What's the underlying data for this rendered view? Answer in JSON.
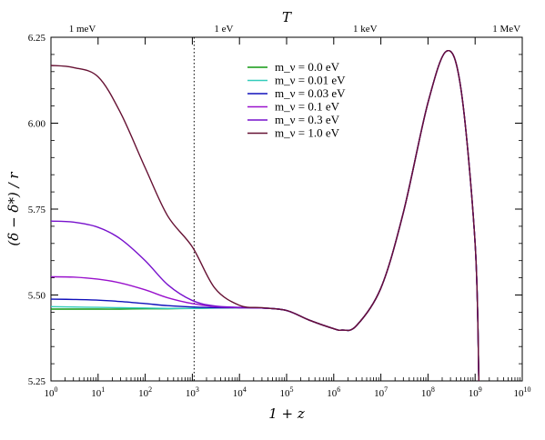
{
  "chart_data": {
    "type": "line",
    "xlabel": "1 + z",
    "ylabel": "(δ − δ*) / r",
    "top_xlabel": "T",
    "x_scale": "log",
    "xlim": [
      1,
      10000000000
    ],
    "ylim": [
      5.25,
      6.25
    ],
    "grid": false,
    "legend_position": "top-center",
    "x_ticks": [
      "10^0",
      "10^1",
      "10^2",
      "10^3",
      "10^4",
      "10^5",
      "10^6",
      "10^7",
      "10^8",
      "10^9",
      "10^10"
    ],
    "x_tick_values": [
      1,
      10,
      100,
      1000,
      10000,
      100000,
      1000000,
      10000000,
      100000000,
      1000000000,
      10000000000
    ],
    "y_ticks": [
      "5.25",
      "5.50",
      "5.75",
      "6.00",
      "6.25"
    ],
    "y_tick_values": [
      5.25,
      5.5,
      5.75,
      6.0,
      6.25
    ],
    "top_ticks": [
      {
        "label": "1 meV",
        "x": 4.64
      },
      {
        "label": "1 eV",
        "x": 4640
      },
      {
        "label": "1 keV",
        "x": 4640000
      },
      {
        "label": "1 MeV",
        "x": 4640000000
      }
    ],
    "vline_x": 1090,
    "series": [
      {
        "name": "m_ν = 0.0 eV",
        "color": "#119911",
        "x": [
          1,
          3,
          10,
          30,
          100,
          300,
          1000,
          3000,
          10000,
          30000,
          100000,
          300000,
          1000000,
          1500000,
          3000000,
          10000000,
          30000000,
          100000000,
          250000000,
          500000000,
          1000000000,
          1200000000
        ],
        "y": [
          5.459,
          5.459,
          5.459,
          5.459,
          5.46,
          5.46,
          5.461,
          5.462,
          5.463,
          5.462,
          5.455,
          5.427,
          5.402,
          5.398,
          5.41,
          5.52,
          5.74,
          6.06,
          6.21,
          6.1,
          5.65,
          5.25
        ]
      },
      {
        "name": "m_ν = 0.01 eV",
        "color": "#33ccbb",
        "x": [
          1,
          3,
          10,
          30,
          100,
          300,
          1000,
          3000,
          10000,
          30000,
          100000,
          300000,
          1000000,
          1500000,
          3000000,
          10000000,
          30000000,
          100000000,
          250000000,
          500000000,
          1000000000,
          1200000000
        ],
        "y": [
          5.466,
          5.465,
          5.464,
          5.463,
          5.462,
          5.461,
          5.461,
          5.462,
          5.463,
          5.462,
          5.455,
          5.427,
          5.402,
          5.398,
          5.41,
          5.52,
          5.74,
          6.06,
          6.21,
          6.1,
          5.65,
          5.25
        ]
      },
      {
        "name": "m_ν = 0.03 eV",
        "color": "#1111bb",
        "x": [
          1,
          3,
          10,
          30,
          100,
          300,
          1000,
          3000,
          10000,
          30000,
          100000,
          300000,
          1000000,
          1500000,
          3000000,
          10000000,
          30000000,
          100000000,
          250000000,
          500000000,
          1000000000,
          1200000000
        ],
        "y": [
          5.488,
          5.487,
          5.485,
          5.481,
          5.475,
          5.469,
          5.465,
          5.463,
          5.463,
          5.462,
          5.455,
          5.427,
          5.402,
          5.398,
          5.41,
          5.52,
          5.74,
          6.06,
          6.21,
          6.1,
          5.65,
          5.25
        ]
      },
      {
        "name": "m_ν = 0.1 eV",
        "color": "#9911cc",
        "x": [
          1,
          3,
          10,
          30,
          100,
          300,
          1000,
          3000,
          10000,
          30000,
          100000,
          300000,
          1000000,
          1500000,
          3000000,
          10000000,
          30000000,
          100000000,
          250000000,
          500000000,
          1000000000,
          1200000000
        ],
        "y": [
          5.553,
          5.552,
          5.546,
          5.535,
          5.515,
          5.492,
          5.475,
          5.466,
          5.463,
          5.462,
          5.455,
          5.427,
          5.402,
          5.398,
          5.41,
          5.52,
          5.74,
          6.06,
          6.21,
          6.1,
          5.65,
          5.25
        ]
      },
      {
        "name": "m_ν = 0.3 eV",
        "color": "#7711cc",
        "x": [
          1,
          3,
          10,
          30,
          100,
          300,
          1000,
          3000,
          10000,
          30000,
          100000,
          300000,
          1000000,
          1500000,
          3000000,
          10000000,
          30000000,
          100000000,
          250000000,
          500000000,
          1000000000,
          1200000000
        ],
        "y": [
          5.715,
          5.712,
          5.697,
          5.663,
          5.6,
          5.53,
          5.484,
          5.468,
          5.464,
          5.462,
          5.455,
          5.427,
          5.402,
          5.398,
          5.41,
          5.52,
          5.74,
          6.06,
          6.21,
          6.1,
          5.65,
          5.25
        ]
      },
      {
        "name": "m_ν = 1.0 eV",
        "color": "#661133",
        "x": [
          1,
          3,
          10,
          30,
          100,
          300,
          1000,
          3000,
          10000,
          30000,
          100000,
          300000,
          1000000,
          1500000,
          3000000,
          10000000,
          30000000,
          100000000,
          250000000,
          500000000,
          1000000000,
          1200000000
        ],
        "y": [
          6.168,
          6.162,
          6.135,
          6.03,
          5.87,
          5.73,
          5.64,
          5.52,
          5.47,
          5.463,
          5.455,
          5.427,
          5.402,
          5.398,
          5.41,
          5.52,
          5.74,
          6.06,
          6.21,
          6.1,
          5.65,
          5.25
        ]
      }
    ]
  }
}
